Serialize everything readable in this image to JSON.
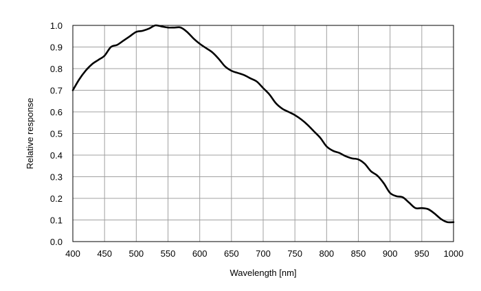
{
  "chart_data": {
    "type": "line",
    "title": "",
    "xlabel": "Wavelength [nm]",
    "ylabel": "Relative response",
    "xlim": [
      400,
      1000
    ],
    "ylim": [
      0.0,
      1.0
    ],
    "grid": true,
    "legend": "none",
    "line_color": "#000000",
    "grid_color": "#a0a0a0",
    "x_ticks": [
      "400",
      "450",
      "500",
      "550",
      "600",
      "650",
      "700",
      "750",
      "800",
      "850",
      "900",
      "950",
      "1000"
    ],
    "y_ticks": [
      "0.0",
      "0.1",
      "0.2",
      "0.3",
      "0.4",
      "0.5",
      "0.6",
      "0.7",
      "0.8",
      "0.9",
      "1.0"
    ],
    "series": [
      {
        "x": [
          400,
          410,
          420,
          430,
          440,
          450,
          460,
          470,
          480,
          490,
          500,
          510,
          520,
          530,
          540,
          550,
          560,
          570,
          580,
          590,
          600,
          610,
          620,
          630,
          640,
          650,
          660,
          670,
          680,
          690,
          700,
          710,
          720,
          730,
          740,
          750,
          760,
          770,
          780,
          790,
          800,
          810,
          820,
          830,
          840,
          850,
          860,
          870,
          880,
          890,
          900,
          910,
          920,
          930,
          940,
          950,
          960,
          970,
          980,
          990,
          1000
        ],
        "y": [
          0.7,
          0.75,
          0.79,
          0.82,
          0.84,
          0.86,
          0.9,
          0.91,
          0.93,
          0.95,
          0.97,
          0.975,
          0.985,
          1.0,
          0.995,
          0.99,
          0.99,
          0.99,
          0.97,
          0.94,
          0.915,
          0.895,
          0.875,
          0.845,
          0.81,
          0.79,
          0.78,
          0.77,
          0.755,
          0.74,
          0.71,
          0.68,
          0.64,
          0.615,
          0.6,
          0.585,
          0.565,
          0.54,
          0.51,
          0.48,
          0.44,
          0.42,
          0.41,
          0.395,
          0.385,
          0.38,
          0.36,
          0.325,
          0.305,
          0.27,
          0.225,
          0.21,
          0.205,
          0.18,
          0.155,
          0.155,
          0.15,
          0.13,
          0.105,
          0.09,
          0.09
        ]
      }
    ]
  }
}
